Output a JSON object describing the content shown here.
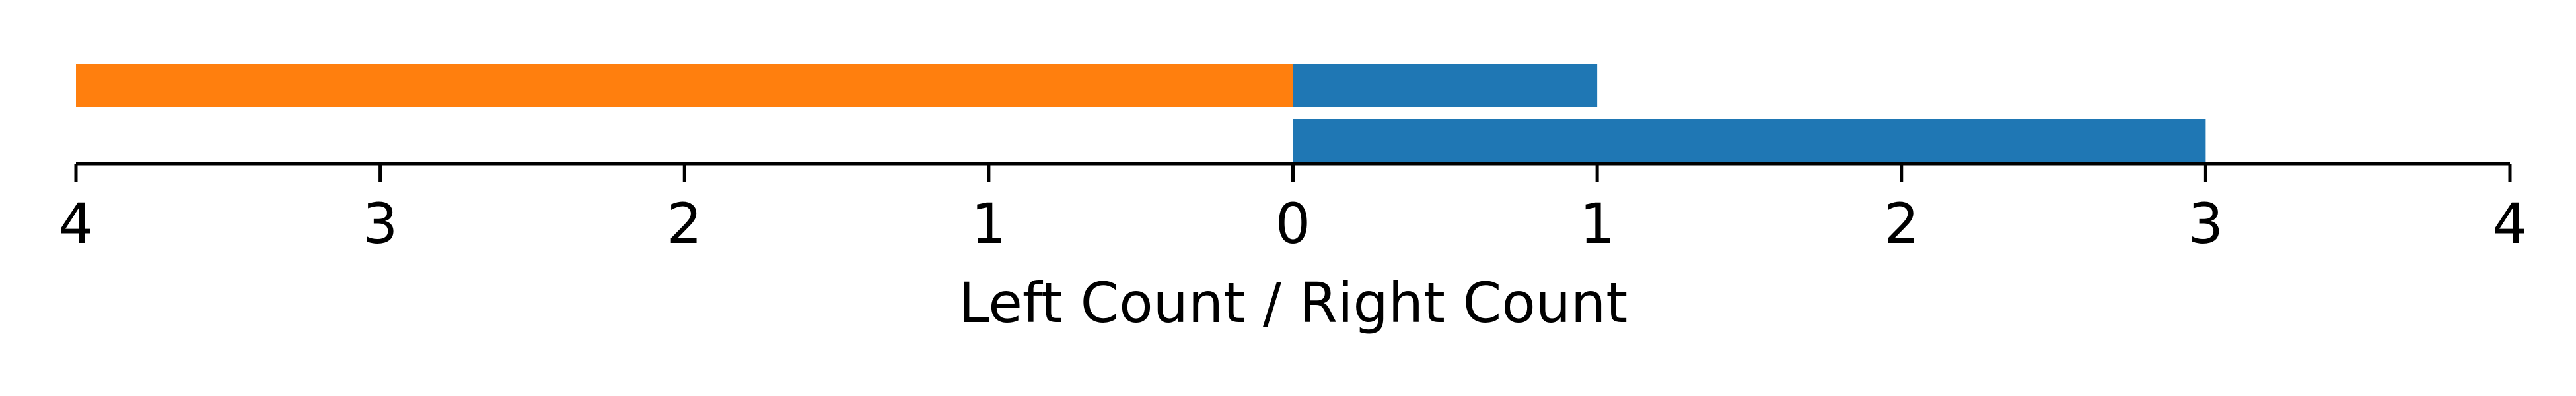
{
  "chart_data": {
    "type": "bar",
    "orientation": "horizontal",
    "diverging": true,
    "xlabel": "Left Count / Right Count",
    "xlim": [
      -4,
      4
    ],
    "x_ticks": [
      -4,
      -3,
      -2,
      -1,
      0,
      1,
      2,
      3,
      4
    ],
    "x_tick_labels": [
      "4",
      "3",
      "2",
      "1",
      "0",
      "1",
      "2",
      "3",
      "4"
    ],
    "rows": 2,
    "series": [
      {
        "key": "left",
        "values": [
          4,
          0
        ],
        "color": "#ff7f0e"
      },
      {
        "key": "right",
        "values": [
          1,
          3
        ],
        "color": "#1f77b4"
      }
    ],
    "y_ticks_visible": false,
    "grid": false
  }
}
